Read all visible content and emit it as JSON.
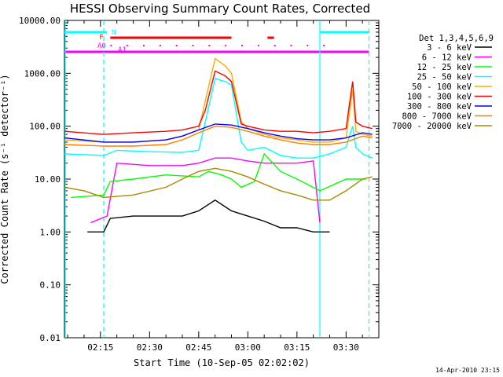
{
  "chart_data": {
    "type": "line",
    "title": "HESSI Observing Summary Count Rates, Corrected",
    "xlabel": "Start Time (10-Sep-05 02:02:02)",
    "ylabel": "Corrected Count Rate (s⁻¹ detector⁻¹)",
    "y_scale": "log",
    "ylim": [
      0.01,
      10000
    ],
    "y_ticks": [
      "10000.00",
      "1000.00",
      "100.00",
      "10.00",
      "1.00",
      "0.10",
      "0.01"
    ],
    "x_range": [
      "02:04",
      "03:40"
    ],
    "x_ticks": [
      "02:15",
      "02:30",
      "02:45",
      "03:00",
      "03:15",
      "03:30"
    ],
    "legend_title": "Det 1,3,4,5,6,9",
    "legend_position": "top-right",
    "grid": false,
    "footer_timestamp": "14-Apr-2010 23:15",
    "series": [
      {
        "name": "3 - 6 keV",
        "color": "#000000",
        "x": [
          "02:11",
          "02:16",
          "02:18",
          "02:25",
          "02:35",
          "02:40",
          "02:45",
          "02:50",
          "02:55",
          "03:00",
          "03:05",
          "03:10",
          "03:15",
          "03:20",
          "03:25"
        ],
        "y": [
          1.0,
          1.0,
          1.8,
          2.0,
          2.0,
          2.0,
          2.5,
          4.0,
          2.5,
          2.0,
          1.6,
          1.2,
          1.2,
          1.0,
          1.0
        ]
      },
      {
        "name": "6 - 12 keV",
        "color": "#ff00ff",
        "x": [
          "02:12",
          "02:17",
          "02:20",
          "02:30",
          "02:40",
          "02:45",
          "02:50",
          "02:55",
          "03:00",
          "03:05",
          "03:10",
          "03:15",
          "03:20",
          "03:22"
        ],
        "y": [
          1.5,
          2.0,
          20,
          18,
          18,
          20,
          25,
          25,
          22,
          20,
          20,
          20,
          22,
          1.5
        ]
      },
      {
        "name": "12 - 25 keV",
        "color": "#00ff00",
        "x": [
          "02:06",
          "02:16",
          "02:18",
          "02:25",
          "02:35",
          "02:45",
          "02:48",
          "02:52",
          "02:55",
          "02:58",
          "03:02",
          "03:05",
          "03:10",
          "03:15",
          "03:22",
          "03:30",
          "03:36"
        ],
        "y": [
          4.5,
          5.0,
          9,
          10,
          12,
          11,
          14,
          12,
          10,
          7,
          9,
          30,
          14,
          10,
          6,
          10,
          10
        ]
      },
      {
        "name": "25 - 50 keV",
        "color": "#00ffff",
        "x": [
          "02:04",
          "02:16",
          "02:20",
          "02:30",
          "02:40",
          "02:45",
          "02:47",
          "02:50",
          "02:53",
          "02:55",
          "02:58",
          "03:00",
          "03:05",
          "03:10",
          "03:15",
          "03:20",
          "03:25",
          "03:30",
          "03:32",
          "03:33",
          "03:35",
          "03:38"
        ],
        "y": [
          30,
          28,
          35,
          33,
          32,
          35,
          120,
          800,
          700,
          600,
          50,
          35,
          40,
          28,
          25,
          25,
          30,
          40,
          100,
          40,
          30,
          25
        ]
      },
      {
        "name": "50 - 100 keV",
        "color": "#ffaa00",
        "x": [
          "02:04",
          "02:16",
          "02:25",
          "02:35",
          "02:40",
          "02:45",
          "02:47",
          "02:50",
          "02:53",
          "02:55",
          "02:58",
          "03:00",
          "03:05",
          "03:10",
          "03:15",
          "03:20",
          "03:25",
          "03:30",
          "03:32",
          "03:33",
          "03:35",
          "03:38"
        ],
        "y": [
          55,
          50,
          50,
          55,
          65,
          85,
          300,
          1900,
          1400,
          1000,
          120,
          90,
          70,
          60,
          55,
          50,
          50,
          60,
          500,
          80,
          70,
          65
        ]
      },
      {
        "name": "100 - 300 keV",
        "color": "#ff0000",
        "x": [
          "02:04",
          "02:16",
          "02:25",
          "02:35",
          "02:40",
          "02:45",
          "02:47",
          "02:50",
          "02:53",
          "02:55",
          "02:58",
          "03:00",
          "03:05",
          "03:10",
          "03:15",
          "03:20",
          "03:25",
          "03:30",
          "03:32",
          "03:33",
          "03:35",
          "03:38"
        ],
        "y": [
          80,
          70,
          75,
          80,
          85,
          100,
          200,
          1100,
          900,
          700,
          110,
          100,
          85,
          80,
          80,
          75,
          80,
          90,
          700,
          120,
          100,
          90
        ]
      },
      {
        "name": "300 - 800 keV",
        "color": "#0000ff",
        "x": [
          "02:04",
          "02:16",
          "02:25",
          "02:35",
          "02:40",
          "02:45",
          "02:50",
          "02:55",
          "03:00",
          "03:05",
          "03:10",
          "03:15",
          "03:20",
          "03:25",
          "03:30",
          "03:35",
          "03:38"
        ],
        "y": [
          60,
          50,
          50,
          55,
          65,
          85,
          110,
          105,
          90,
          75,
          65,
          58,
          55,
          55,
          60,
          75,
          70
        ]
      },
      {
        "name": "800 - 7000 keV",
        "color": "#ff7f00",
        "x": [
          "02:04",
          "02:16",
          "02:25",
          "02:35",
          "02:40",
          "02:45",
          "02:50",
          "02:55",
          "03:00",
          "03:05",
          "03:10",
          "03:15",
          "03:20",
          "03:25",
          "03:30",
          "03:35",
          "03:38"
        ],
        "y": [
          45,
          42,
          42,
          45,
          55,
          75,
          100,
          95,
          80,
          65,
          55,
          48,
          45,
          45,
          50,
          65,
          60
        ]
      },
      {
        "name": "7000 - 20000 keV",
        "color": "#aa8800",
        "x": [
          "02:04",
          "02:10",
          "02:16",
          "02:25",
          "02:35",
          "02:40",
          "02:45",
          "02:50",
          "02:55",
          "03:00",
          "03:05",
          "03:10",
          "03:15",
          "03:20",
          "03:25",
          "03:30",
          "03:35",
          "03:38"
        ],
        "y": [
          7,
          6,
          4.5,
          5,
          7,
          10,
          14,
          16,
          14,
          11,
          8,
          6,
          5,
          4,
          4,
          6,
          10,
          11
        ]
      }
    ],
    "flag_bars": [
      {
        "label": "N",
        "color": "#00ffff",
        "segments": [
          [
            "02:04",
            "02:17"
          ],
          [
            "03:22",
            "03:37"
          ]
        ]
      },
      {
        "label": "F",
        "color": "#ff0000",
        "segments": [
          [
            "02:18",
            "02:55"
          ],
          [
            "03:06",
            "03:08"
          ]
        ]
      },
      {
        "label": "A0",
        "color": "#ff00ff",
        "segments": [
          [
            "02:04",
            "03:37"
          ]
        ]
      }
    ],
    "flag_a1_label": "A1",
    "vertical_markers": [
      {
        "x": "02:16",
        "color": "#00ffff",
        "style": "dashed"
      },
      {
        "x": "03:22",
        "color": "#00ffff",
        "style": "solid"
      },
      {
        "x": "03:37",
        "color": "#00ffff",
        "style": "dashed"
      }
    ]
  }
}
